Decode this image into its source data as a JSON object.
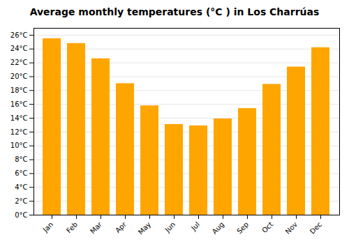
{
  "chart_data": {
    "type": "bar",
    "title": "Average monthly temperatures (°C ) in Los Charrúas",
    "categories": [
      "Jan",
      "Feb",
      "Mar",
      "Apr",
      "May",
      "Jun",
      "Jul",
      "Aug",
      "Sep",
      "Oct",
      "Nov",
      "Dec"
    ],
    "values": [
      25.5,
      24.8,
      22.6,
      19.0,
      15.8,
      13.1,
      12.9,
      13.9,
      15.4,
      18.9,
      21.4,
      24.2
    ],
    "color": "#FFA500",
    "ylim": [
      0,
      27
    ],
    "yticks": [
      {
        "value": 0,
        "label": "0°C"
      },
      {
        "value": 2,
        "label": "2°C"
      },
      {
        "value": 4,
        "label": "4°C"
      },
      {
        "value": 6,
        "label": "6°C"
      },
      {
        "value": 8,
        "label": "8°C"
      },
      {
        "value": 10,
        "label": "10°C"
      },
      {
        "value": 12,
        "label": "12°C"
      },
      {
        "value": 14,
        "label": "14°C"
      },
      {
        "value": 16,
        "label": "16°C"
      },
      {
        "value": 18,
        "label": "18°C"
      },
      {
        "value": 20,
        "label": "20°C"
      },
      {
        "value": 22,
        "label": "22°C"
      },
      {
        "value": 24,
        "label": "24°C"
      },
      {
        "value": 26,
        "label": "26°C"
      }
    ],
    "grid": true
  }
}
